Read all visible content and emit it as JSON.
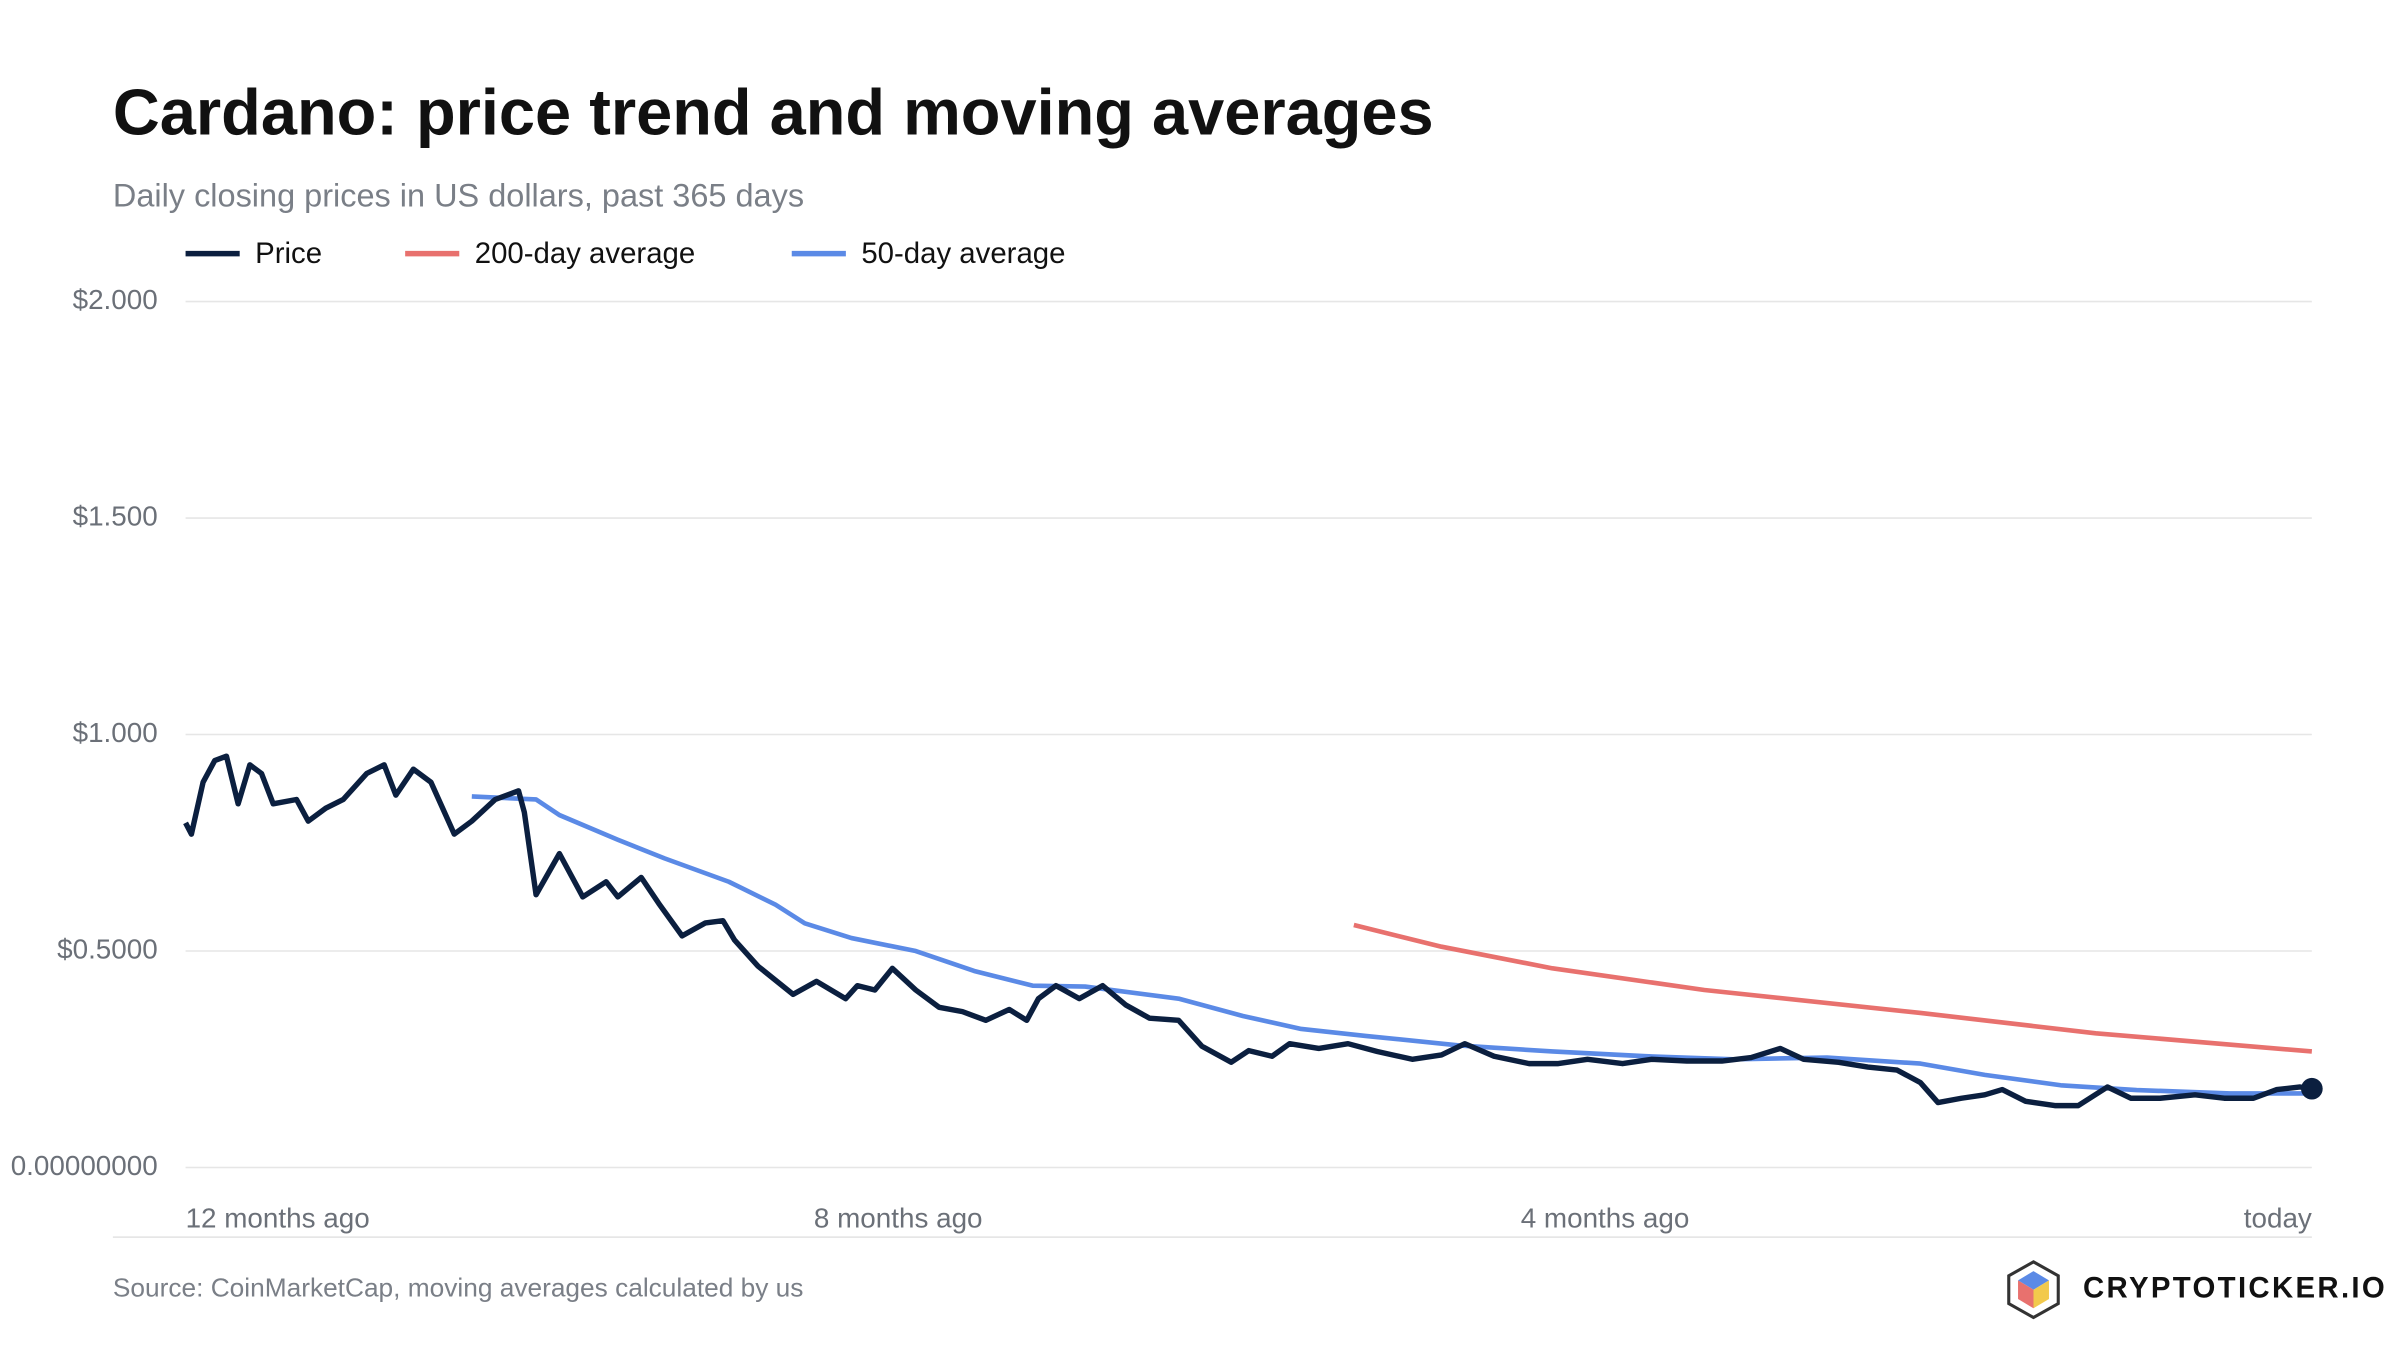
{
  "chart_data": {
    "type": "line",
    "title": "Cardano: price trend and moving averages",
    "subtitle": "Daily closing prices in US dollars, past 365 days",
    "source": "Source: CoinMarketCap, moving averages calculated by us",
    "brand": "CRYPTOTICKER.IO",
    "xlim": [
      0,
      364
    ],
    "xticks": [
      {
        "value": 0,
        "label": "12 months ago"
      },
      {
        "value": 122,
        "label": "8 months ago"
      },
      {
        "value": 243,
        "label": "4 months ago"
      },
      {
        "value": 364,
        "label": "today"
      }
    ],
    "ylim": [
      0,
      2
    ],
    "yticks": [
      {
        "value": 0,
        "label": "0.00000000"
      },
      {
        "value": 0.5,
        "label": "$0.5000"
      },
      {
        "value": 1,
        "label": "$1.000"
      },
      {
        "value": 1.5,
        "label": "$1.500"
      },
      {
        "value": 2,
        "label": "$2.000"
      }
    ],
    "grid": true,
    "series": [
      {
        "name": "Price",
        "color": "#0b1f3f",
        "x": [
          0,
          1,
          3,
          5,
          7,
          9,
          11,
          13,
          15,
          19,
          21,
          24,
          27,
          31,
          34,
          36,
          39,
          42,
          45,
          46,
          49,
          53,
          57,
          58,
          60,
          64,
          68,
          72,
          74,
          78,
          81,
          85,
          89,
          92,
          94,
          98,
          104,
          108,
          113,
          115,
          118,
          121,
          125,
          129,
          133,
          137,
          141,
          144,
          146,
          149,
          153,
          157,
          161,
          165,
          170,
          174,
          179,
          182,
          186,
          189,
          194,
          199,
          204,
          210,
          215,
          219,
          224,
          230,
          235,
          240,
          246,
          251,
          257,
          263,
          268,
          273,
          277,
          283,
          288,
          293,
          297,
          300,
          304,
          308,
          311,
          315,
          320,
          324,
          329,
          333,
          338,
          344,
          349,
          354,
          358,
          362,
          364
        ],
        "values": [
          0.796,
          0.77,
          0.89,
          0.94,
          0.95,
          0.84,
          0.93,
          0.91,
          0.84,
          0.85,
          0.8,
          0.83,
          0.85,
          0.91,
          0.93,
          0.86,
          0.92,
          0.89,
          0.8,
          0.77,
          0.8,
          0.85,
          0.87,
          0.82,
          0.63,
          0.725,
          0.625,
          0.66,
          0.625,
          0.67,
          0.61,
          0.535,
          0.565,
          0.57,
          0.525,
          0.465,
          0.4,
          0.43,
          0.39,
          0.42,
          0.41,
          0.46,
          0.41,
          0.37,
          0.36,
          0.34,
          0.365,
          0.34,
          0.39,
          0.42,
          0.39,
          0.42,
          0.375,
          0.345,
          0.34,
          0.28,
          0.243,
          0.27,
          0.257,
          0.286,
          0.275,
          0.286,
          0.268,
          0.25,
          0.26,
          0.286,
          0.257,
          0.24,
          0.24,
          0.25,
          0.24,
          0.25,
          0.246,
          0.246,
          0.254,
          0.275,
          0.25,
          0.243,
          0.232,
          0.225,
          0.196,
          0.15,
          0.16,
          0.168,
          0.18,
          0.153,
          0.143,
          0.143,
          0.186,
          0.16,
          0.16,
          0.168,
          0.16,
          0.16,
          0.18,
          0.186,
          0.182
        ]
      },
      {
        "name": "200-day average",
        "color": "#e8716e",
        "x": [
          200,
          215,
          234,
          260,
          297,
          327,
          364
        ],
        "values": [
          0.56,
          0.51,
          0.46,
          0.41,
          0.357,
          0.31,
          0.268
        ]
      },
      {
        "name": "50-day average",
        "color": "#5b8ae6",
        "x": [
          49,
          60,
          64,
          74,
          82,
          93,
          101,
          106,
          114,
          125,
          135,
          145,
          154,
          170,
          181,
          191,
          202,
          218,
          234,
          250,
          265,
          281,
          297,
          308,
          321,
          334,
          350,
          364
        ],
        "values": [
          0.857,
          0.85,
          0.814,
          0.757,
          0.714,
          0.66,
          0.607,
          0.564,
          0.53,
          0.5,
          0.454,
          0.42,
          0.418,
          0.39,
          0.35,
          0.32,
          0.304,
          0.282,
          0.268,
          0.257,
          0.25,
          0.254,
          0.24,
          0.214,
          0.19,
          0.179,
          0.171,
          0.171
        ]
      }
    ]
  }
}
